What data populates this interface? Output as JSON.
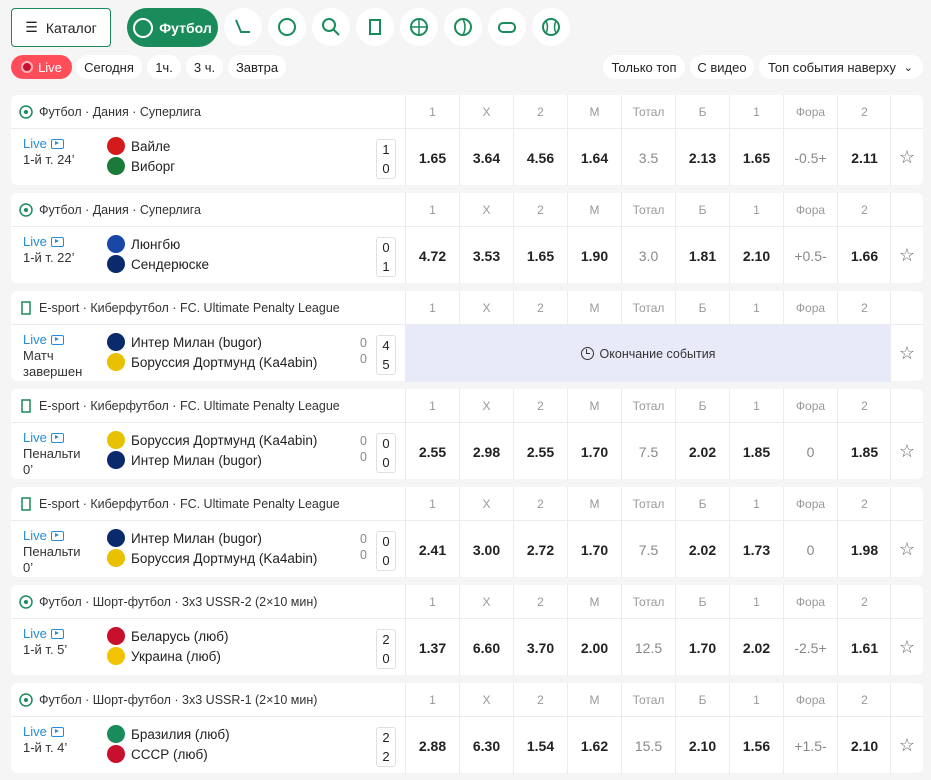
{
  "topbar": {
    "catalog_label": "Каталог",
    "active_sport": "Футбол",
    "sports": [
      "hockey-icon",
      "tennis-icon",
      "table-tennis-icon",
      "esport-icon",
      "basketball-icon",
      "volleyball-icon",
      "gamepad-icon",
      "baseball-icon"
    ]
  },
  "filters": {
    "live": "Live",
    "today": "Сегодня",
    "h1": "1ч.",
    "h3": "3 ч.",
    "tomorrow": "Завтра",
    "top_only": "Только топ",
    "with_video": "С видео",
    "sort": "Топ события наверху"
  },
  "columns": [
    "1",
    "X",
    "2",
    "М",
    "Тотал",
    "Б",
    "1",
    "Фора",
    "2"
  ],
  "colors": {
    "brand": "#1a8b5a",
    "live": "#ff4d5a",
    "link": "#1f8fd6",
    "ended_bg": "#e8eaf9"
  },
  "events": [
    {
      "league": "Футбол · Дания · Суперлига",
      "live": "Live",
      "time": "1-й т. 24’",
      "team1": "Вайле",
      "team2": "Виборг",
      "score1": "1",
      "score2": "0",
      "sub1": "",
      "sub2": "",
      "odds": [
        "1.65",
        "3.64",
        "4.56",
        "1.64",
        "3.5",
        "2.13",
        "1.65",
        "-0.5+",
        "2.11"
      ]
    },
    {
      "league": "Футбол · Дания · Суперлига",
      "live": "Live",
      "time": "1-й т. 22’",
      "team1": "Люнгбю",
      "team2": "Сендерюске",
      "score1": "0",
      "score2": "1",
      "sub1": "",
      "sub2": "",
      "odds": [
        "4.72",
        "3.53",
        "1.65",
        "1.90",
        "3.0",
        "1.81",
        "2.10",
        "+0.5-",
        "1.66"
      ]
    },
    {
      "league": "E-sport · Киберфутбол · FC. Ultimate Penalty League",
      "live": "Live",
      "time": "Матч завершен",
      "team1": "Интер Милан (bugor)",
      "team2": "Боруссия Дортмунд (Ka4abin)",
      "score1": "4",
      "score2": "5",
      "sub1": "0",
      "sub2": "0",
      "ended": "Окончание события",
      "odds": []
    },
    {
      "league": "E-sport · Киберфутбол · FC. Ultimate Penalty League",
      "live": "Live",
      "time": "Пенальти 0’",
      "team1": "Боруссия Дортмунд (Ka4abin)",
      "team2": "Интер Милан (bugor)",
      "score1": "0",
      "score2": "0",
      "sub1": "0",
      "sub2": "0",
      "odds": [
        "2.55",
        "2.98",
        "2.55",
        "1.70",
        "7.5",
        "2.02",
        "1.85",
        "0",
        "1.85"
      ]
    },
    {
      "league": "E-sport · Киберфутбол · FC. Ultimate Penalty League",
      "live": "Live",
      "time": "Пенальти 0’",
      "team1": "Интер Милан (bugor)",
      "team2": "Боруссия Дортмунд (Ka4abin)",
      "score1": "0",
      "score2": "0",
      "sub1": "0",
      "sub2": "0",
      "odds": [
        "2.41",
        "3.00",
        "2.72",
        "1.70",
        "7.5",
        "2.02",
        "1.73",
        "0",
        "1.98"
      ]
    },
    {
      "league": "Футбол · Шорт-футбол · 3x3 USSR-2 (2×10 мин)",
      "live": "Live",
      "time": "1-й т. 5’",
      "team1": "Беларусь (люб)",
      "team2": "Украина (люб)",
      "score1": "2",
      "score2": "0",
      "sub1": "",
      "sub2": "",
      "odds": [
        "1.37",
        "6.60",
        "3.70",
        "2.00",
        "12.5",
        "1.70",
        "2.02",
        "-2.5+",
        "1.61"
      ]
    },
    {
      "league": "Футбол · Шорт-футбол · 3x3 USSR-1 (2×10 мин)",
      "live": "Live",
      "time": "1-й т. 4’",
      "team1": "Бразилия (люб)",
      "team2": "СССР (люб)",
      "score1": "2",
      "score2": "2",
      "sub1": "",
      "sub2": "",
      "odds": [
        "2.88",
        "6.30",
        "1.54",
        "1.62",
        "15.5",
        "2.10",
        "1.56",
        "+1.5-",
        "2.10"
      ]
    }
  ]
}
